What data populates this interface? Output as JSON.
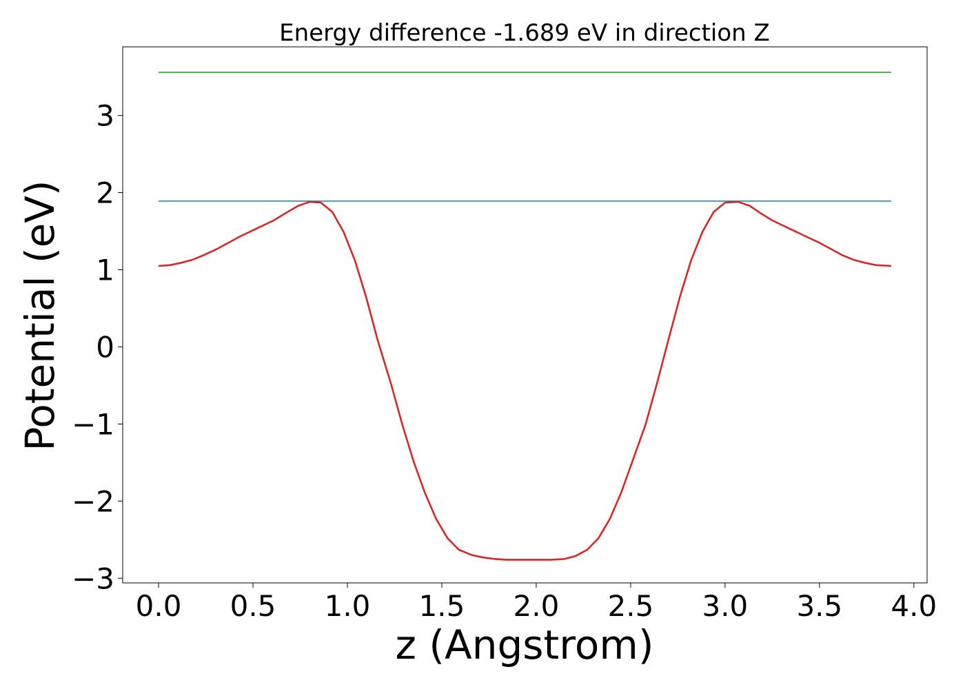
{
  "chart_data": {
    "type": "line",
    "title": "Energy difference -1.689 eV in direction Z",
    "xlabel": "z (Angstrom)",
    "ylabel": "Potential (eV)",
    "xlim": [
      -0.19,
      4.07
    ],
    "ylim": [
      -3.06,
      3.89
    ],
    "grid": false,
    "legend": "none",
    "x_ticks": [
      0.0,
      0.5,
      1.0,
      1.5,
      2.0,
      2.5,
      3.0,
      3.5,
      4.0
    ],
    "x_tick_labels": [
      "0.0",
      "0.5",
      "1.0",
      "1.5",
      "2.0",
      "2.5",
      "3.0",
      "3.5",
      "4.0"
    ],
    "y_ticks": [
      -3,
      -2,
      -1,
      0,
      1,
      2,
      3
    ],
    "y_tick_labels": [
      "−3",
      "−2",
      "−1",
      "0",
      "1",
      "2",
      "3"
    ],
    "series": [
      {
        "color": "#2ca02c",
        "x": [
          0.0,
          3.88
        ],
        "y": [
          3.56,
          3.56
        ]
      },
      {
        "color": "#1f77b4",
        "x": [
          0.0,
          3.88
        ],
        "y": [
          1.89,
          1.89
        ]
      },
      {
        "color": "#d62728",
        "x": [
          0.0,
          0.06,
          0.12,
          0.18,
          0.24,
          0.31,
          0.37,
          0.43,
          0.49,
          0.55,
          0.61,
          0.67,
          0.74,
          0.8,
          0.86,
          0.92,
          0.98,
          1.04,
          1.1,
          1.16,
          1.23,
          1.29,
          1.35,
          1.41,
          1.47,
          1.53,
          1.59,
          1.66,
          1.72,
          1.78,
          1.84,
          1.9,
          1.96,
          2.02,
          2.08,
          2.15,
          2.21,
          2.27,
          2.33,
          2.39,
          2.45,
          2.51,
          2.58,
          2.64,
          2.7,
          2.76,
          2.82,
          2.88,
          2.94,
          3.0,
          3.07,
          3.13,
          3.19,
          3.25,
          3.31,
          3.37,
          3.43,
          3.5,
          3.56,
          3.62,
          3.68,
          3.74,
          3.8,
          3.88
        ],
        "y": [
          1.05,
          1.06,
          1.09,
          1.13,
          1.19,
          1.27,
          1.35,
          1.43,
          1.5,
          1.57,
          1.64,
          1.73,
          1.83,
          1.88,
          1.87,
          1.75,
          1.49,
          1.12,
          0.64,
          0.09,
          -0.47,
          -1.0,
          -1.48,
          -1.89,
          -2.23,
          -2.48,
          -2.63,
          -2.7,
          -2.73,
          -2.75,
          -2.76,
          -2.76,
          -2.76,
          -2.76,
          -2.76,
          -2.75,
          -2.71,
          -2.63,
          -2.48,
          -2.23,
          -1.89,
          -1.48,
          -1.0,
          -0.47,
          0.09,
          0.64,
          1.12,
          1.49,
          1.75,
          1.87,
          1.88,
          1.83,
          1.73,
          1.64,
          1.57,
          1.5,
          1.43,
          1.35,
          1.27,
          1.19,
          1.13,
          1.09,
          1.06,
          1.05
        ]
      }
    ]
  }
}
